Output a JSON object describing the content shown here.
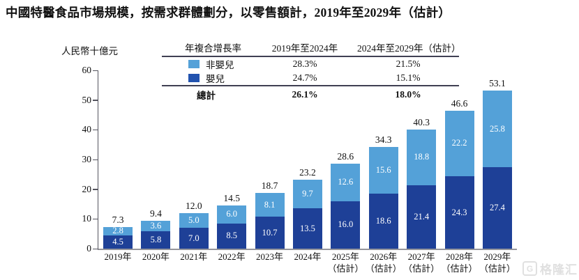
{
  "title": "中國特醫食品市場規模，按需求群體劃分，以零售額計，2019年至2029年（估計）",
  "y_axis_label": "人民幣十億元",
  "cagr_table": {
    "header": [
      "年複合增長率",
      "2019年至2024年",
      "2024年至2029年（估計）"
    ],
    "rows": [
      {
        "label": "非嬰兒",
        "swatch_color": "#54a1d8",
        "v1": "28.3%",
        "v2": "21.5%"
      },
      {
        "label": "嬰兒",
        "swatch_color": "#2253af",
        "v1": "24.7%",
        "v2": "15.1%"
      }
    ],
    "total": {
      "label": "總計",
      "v1": "26.1%",
      "v2": "18.0%"
    }
  },
  "chart_data": {
    "type": "bar",
    "stacked": true,
    "title": "中國特醫食品市場規模，按需求群體劃分，以零售額計，2019年至2029年（估計）",
    "ylabel": "人民幣十億元",
    "ylim": [
      0,
      60
    ],
    "yticks": [
      0,
      10,
      20,
      30,
      40,
      50,
      60
    ],
    "grid": false,
    "legend_position": "top-table",
    "categories": [
      "2019年",
      "2020年",
      "2021年",
      "2022年",
      "2023年",
      "2024年",
      "2025年（估計）",
      "2026年（估計）",
      "2027年（估計）",
      "2028年（估計）",
      "2029年（估計）"
    ],
    "series": [
      {
        "name": "嬰兒",
        "color": "#1e4097",
        "values": [
          4.5,
          5.8,
          7.0,
          8.5,
          10.7,
          13.5,
          16.0,
          18.6,
          21.4,
          24.3,
          27.4
        ]
      },
      {
        "name": "非嬰兒",
        "color": "#54a1d8",
        "values": [
          2.8,
          3.6,
          5.0,
          6.0,
          8.1,
          9.7,
          12.6,
          15.6,
          18.8,
          22.2,
          25.8
        ]
      }
    ],
    "totals": [
      7.3,
      9.4,
      12.0,
      14.5,
      18.7,
      23.2,
      28.6,
      34.3,
      40.3,
      46.6,
      53.1
    ]
  },
  "watermark": {
    "logo": "G",
    "text": "格隆汇"
  }
}
